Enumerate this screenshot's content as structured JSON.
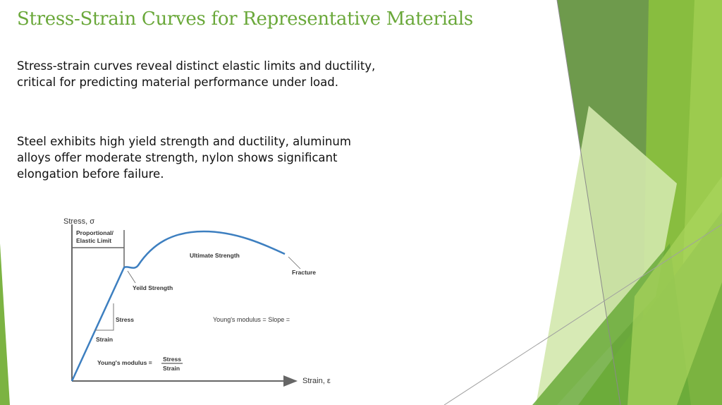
{
  "slide": {
    "title": "Stress-Strain Curves for Representative Materials",
    "paragraphs": [
      "Stress-strain curves reveal distinct elastic limits and ductility, critical for predicting material performance under load.",
      "Steel exhibits high yield strength and ductility, aluminum alloys offer moderate strength, nylon shows significant elongation before failure."
    ]
  },
  "figure": {
    "y_axis_label": "Stress, σ",
    "x_axis_label": "Strain, ε",
    "labels": {
      "proportional_line1": "Proportional/",
      "proportional_line2": "Elastic Limit",
      "ultimate": "Ultimate Strength",
      "fracture": "Fracture",
      "yield": "Yeild Strength",
      "stress": "Stress",
      "strain": "Strain",
      "youngs_slope": "Young's modulus = Slope =",
      "youngs_formula": "Young's modulus =",
      "frac_num": "Stress",
      "frac_den": "Strain"
    },
    "curve_color": "#3d7fc0"
  },
  "theme": {
    "accent": "#6aa83a",
    "greens": [
      "#6d9a4a",
      "#8cc63e",
      "#c9e39a",
      "#7cb342",
      "#5e9636"
    ]
  }
}
